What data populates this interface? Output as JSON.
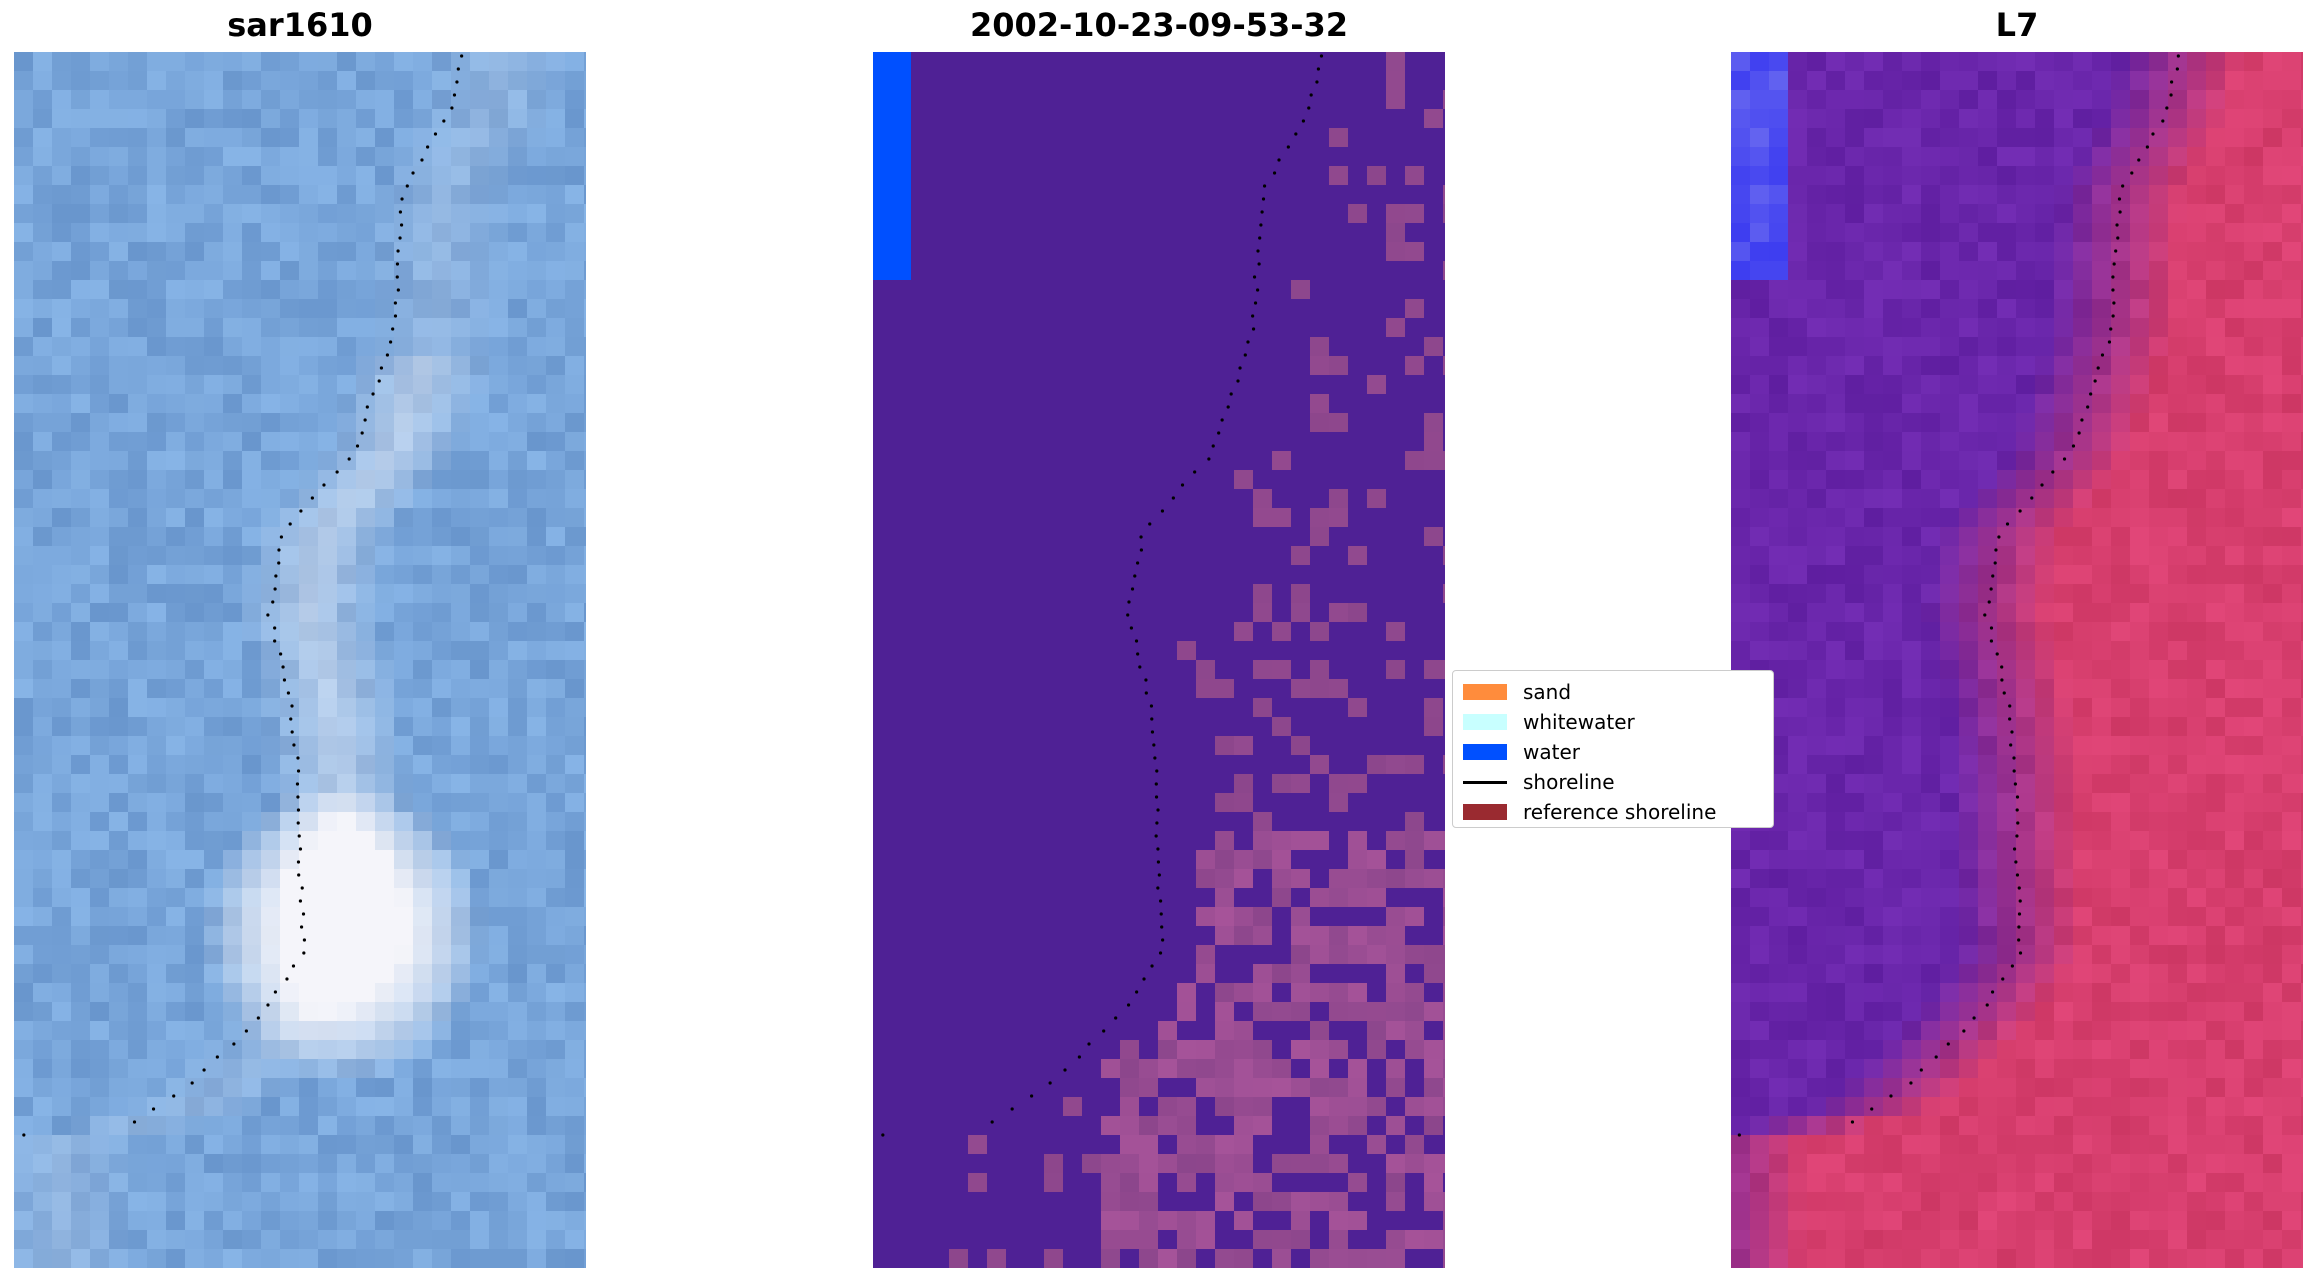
{
  "panels": [
    {
      "title": "sar1610"
    },
    {
      "title": "2002-10-23-09-53-32"
    },
    {
      "title": "L7"
    }
  ],
  "legend": {
    "items": [
      {
        "label": "sand",
        "kind": "patch",
        "color": "#ff8c3c"
      },
      {
        "label": "whitewater",
        "kind": "patch",
        "color": "#c8ffff"
      },
      {
        "label": "water",
        "kind": "patch",
        "color": "#0050ff"
      },
      {
        "label": "shoreline",
        "kind": "line",
        "color": "#000000"
      },
      {
        "label": "reference shoreline",
        "kind": "patch",
        "color": "#9a2a30"
      }
    ]
  },
  "colors": {
    "sar_base": "#6f9bd0",
    "class_land": "#4f2195",
    "class_water": "#0050ff",
    "class_sand_patch": "#8a4a8c",
    "l7_land": "#5a1aa0",
    "l7_sea": "#c8305a"
  }
}
